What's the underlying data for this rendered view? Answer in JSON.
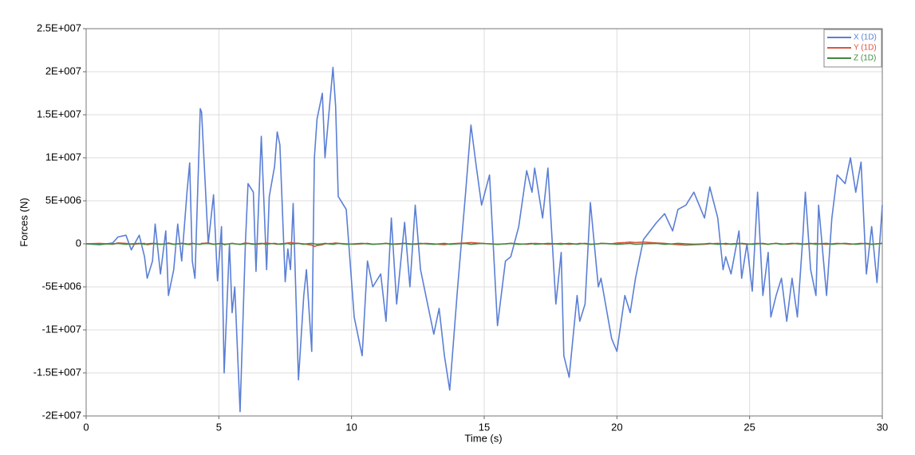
{
  "chart_data": {
    "type": "line",
    "xlabel": "Time (s)",
    "ylabel": "Forces (N)",
    "xlim": [
      0,
      30
    ],
    "xticks": [
      0,
      5,
      10,
      15,
      20,
      25,
      30
    ],
    "ylim": [
      -20000000,
      25000000
    ],
    "yticks": [
      {
        "value": -20000000,
        "label": "-2E+007"
      },
      {
        "value": -15000000,
        "label": "-1.5E+007"
      },
      {
        "value": -10000000,
        "label": "-1E+007"
      },
      {
        "value": -5000000,
        "label": "-5E+006"
      },
      0,
      {
        "value": 5000000,
        "label": "5E+006"
      },
      {
        "value": 10000000,
        "label": "1E+007"
      },
      {
        "value": 15000000,
        "label": "1.5E+007"
      },
      {
        "value": 20000000,
        "label": "2E+007"
      },
      {
        "value": 25000000,
        "label": "2.5E+007"
      }
    ],
    "grid": true,
    "legend": "upper right",
    "x": [
      0,
      0.5,
      1.0,
      1.2,
      1.5,
      1.7,
      2.0,
      2.2,
      2.3,
      2.5,
      2.6,
      2.8,
      3.0,
      3.1,
      3.3,
      3.45,
      3.6,
      3.8,
      3.9,
      4.0,
      4.1,
      4.3,
      4.35,
      4.6,
      4.8,
      4.95,
      5.1,
      5.2,
      5.4,
      5.5,
      5.6,
      5.8,
      6.0,
      6.1,
      6.3,
      6.4,
      6.6,
      6.8,
      6.9,
      7.1,
      7.2,
      7.3,
      7.5,
      7.6,
      7.7,
      7.8,
      8.0,
      8.2,
      8.3,
      8.5,
      8.6,
      8.7,
      8.9,
      9.0,
      9.3,
      9.4,
      9.5,
      9.8,
      10.1,
      10.4,
      10.6,
      10.8,
      11.1,
      11.3,
      11.5,
      11.7,
      12.0,
      12.2,
      12.4,
      12.6,
      12.8,
      13.1,
      13.3,
      13.5,
      13.7,
      14.0,
      14.3,
      14.5,
      14.7,
      14.9,
      15.2,
      15.5,
      15.8,
      16.0,
      16.3,
      16.6,
      16.8,
      16.9,
      17.2,
      17.4,
      17.7,
      17.9,
      18.0,
      18.2,
      18.5,
      18.6,
      18.8,
      19.0,
      19.3,
      19.4,
      19.8,
      20.0,
      20.3,
      20.5,
      20.7,
      21.0,
      21.5,
      21.8,
      22.1,
      22.3,
      22.6,
      22.9,
      23.3,
      23.5,
      23.8,
      24.0,
      24.1,
      24.3,
      24.6,
      24.7,
      24.9,
      25.1,
      25.3,
      25.5,
      25.7,
      25.8,
      26.0,
      26.2,
      26.4,
      26.6,
      26.8,
      27.0,
      27.1,
      27.3,
      27.5,
      27.6,
      27.9,
      28.1,
      28.3,
      28.6,
      28.8,
      29.0,
      29.2,
      29.4,
      29.6,
      29.8,
      30.0
    ],
    "series": [
      {
        "name": "X (1D)",
        "color": "#5b7fd6",
        "values": [
          0,
          -100000,
          100000,
          800000,
          1000000,
          -700000,
          1000000,
          -1500000,
          -4000000,
          -2000000,
          2300000,
          -3500000,
          1500000,
          -6000000,
          -3000000,
          2300000,
          -2000000,
          6000000,
          9400000,
          -2000000,
          -4000000,
          15700000,
          15300000,
          0,
          5700000,
          -4300000,
          2000000,
          -15000000,
          0,
          -8000000,
          -5000000,
          -19500000,
          0,
          7000000,
          6000000,
          -3200000,
          12500000,
          -3000000,
          5500000,
          9000000,
          13000000,
          11500000,
          -4400000,
          -600000,
          -3000000,
          4700000,
          -15800000,
          -6000000,
          -3000000,
          -12500000,
          10000000,
          14500000,
          17500000,
          10000000,
          20500000,
          16000000,
          5500000,
          4000000,
          -8500000,
          -13000000,
          -2000000,
          -5000000,
          -3500000,
          -9000000,
          3000000,
          -7000000,
          2500000,
          -5000000,
          4500000,
          -3000000,
          -6000000,
          -10500000,
          -7500000,
          -13000000,
          -17000000,
          -5000000,
          6000000,
          13800000,
          9000000,
          4500000,
          8000000,
          -9500000,
          -2000000,
          -1500000,
          2000000,
          8500000,
          6000000,
          8800000,
          3000000,
          8800000,
          -7000000,
          -1000000,
          -13000000,
          -15500000,
          -6000000,
          -9000000,
          -7000000,
          4800000,
          -5000000,
          -4000000,
          -11000000,
          -12500000,
          -6000000,
          -8000000,
          -4000000,
          500000,
          2500000,
          3500000,
          1500000,
          4000000,
          4500000,
          6000000,
          3000000,
          6600000,
          3000000,
          -3000000,
          -1500000,
          -3500000,
          1500000,
          -4000000,
          0,
          -5500000,
          6000000,
          -6000000,
          -1000000,
          -8500000,
          -6000000,
          -4000000,
          -9000000,
          -4000000,
          -8500000,
          500000,
          6000000,
          -3000000,
          -6000000,
          4500000,
          -6000000,
          3000000,
          8000000,
          7000000,
          10000000,
          6000000,
          9500000,
          -3500000,
          2000000,
          -4500000,
          4500000
        ]
      },
      {
        "name": "Y (1D)",
        "color": "#d9553f",
        "values": [
          0,
          50000,
          -50000,
          100000,
          50000,
          -50000,
          0,
          50000,
          -100000,
          0,
          50000,
          -50000,
          0,
          100000,
          -50000,
          0,
          50000,
          0,
          -100000,
          50000,
          0,
          -50000,
          50000,
          100000,
          -50000,
          0,
          50000,
          -100000,
          0,
          50000,
          0,
          -50000,
          100000,
          50000,
          0,
          -50000,
          0,
          100000,
          50000,
          0,
          -50000,
          0,
          50000,
          100000,
          150000,
          100000,
          50000,
          0,
          -50000,
          -150000,
          -300000,
          -200000,
          -100000,
          0,
          50000,
          100000,
          50000,
          0,
          -50000,
          0,
          50000,
          -50000,
          0,
          50000,
          0,
          -50000,
          50000,
          0,
          -50000,
          0,
          50000,
          0,
          -50000,
          -100000,
          0,
          50000,
          100000,
          150000,
          100000,
          50000,
          0,
          -50000,
          0,
          50000,
          0,
          -50000,
          0,
          50000,
          0,
          -50000,
          0,
          50000,
          0,
          -50000,
          0,
          50000,
          0,
          -50000,
          0,
          50000,
          0,
          100000,
          150000,
          200000,
          150000,
          200000,
          100000,
          50000,
          -50000,
          -100000,
          -150000,
          -100000,
          -50000,
          0,
          50000,
          0,
          -50000,
          0,
          50000,
          0,
          -50000,
          0,
          50000,
          0,
          -50000,
          0,
          50000,
          0,
          -50000,
          0,
          50000,
          0,
          -50000,
          0,
          50000,
          0,
          -50000,
          0,
          50000,
          0,
          -50000,
          0,
          50000,
          0,
          -50000,
          0,
          50000
        ]
      },
      {
        "name": "Z (1D)",
        "color": "#3f8a3f",
        "values": [
          0,
          -50000,
          0,
          50000,
          -50000,
          0,
          50000,
          -50000,
          0,
          50000,
          0,
          -50000,
          0,
          50000,
          -50000,
          0,
          50000,
          -50000,
          0,
          50000,
          0,
          -50000,
          0,
          50000,
          -50000,
          0,
          50000,
          -50000,
          0,
          50000,
          0,
          -50000,
          0,
          50000,
          -50000,
          0,
          50000,
          -50000,
          0,
          50000,
          0,
          -50000,
          0,
          50000,
          -50000,
          0,
          50000,
          -50000,
          0,
          50000,
          0,
          -50000,
          0,
          50000,
          -50000,
          0,
          50000,
          -50000,
          0,
          50000,
          0,
          -50000,
          0,
          50000,
          -50000,
          0,
          50000,
          -50000,
          0,
          50000,
          0,
          -50000,
          0,
          50000,
          -50000,
          0,
          50000,
          -50000,
          0,
          50000,
          0,
          -50000,
          0,
          50000,
          -50000,
          0,
          50000,
          -50000,
          0,
          50000,
          0,
          -50000,
          0,
          50000,
          -50000,
          0,
          50000,
          -50000,
          0,
          50000,
          0,
          -50000,
          0,
          50000,
          -50000,
          0,
          50000,
          -50000,
          0,
          50000,
          0,
          -50000,
          0,
          50000,
          -50000,
          0,
          50000,
          -50000,
          0,
          50000,
          0,
          -50000,
          0,
          50000,
          -50000,
          0,
          50000,
          -50000,
          0,
          50000,
          0,
          -50000,
          0,
          50000,
          -50000,
          0,
          50000,
          -50000,
          0,
          50000,
          0,
          -50000,
          0,
          50000,
          -50000,
          0,
          50000
        ]
      }
    ]
  }
}
